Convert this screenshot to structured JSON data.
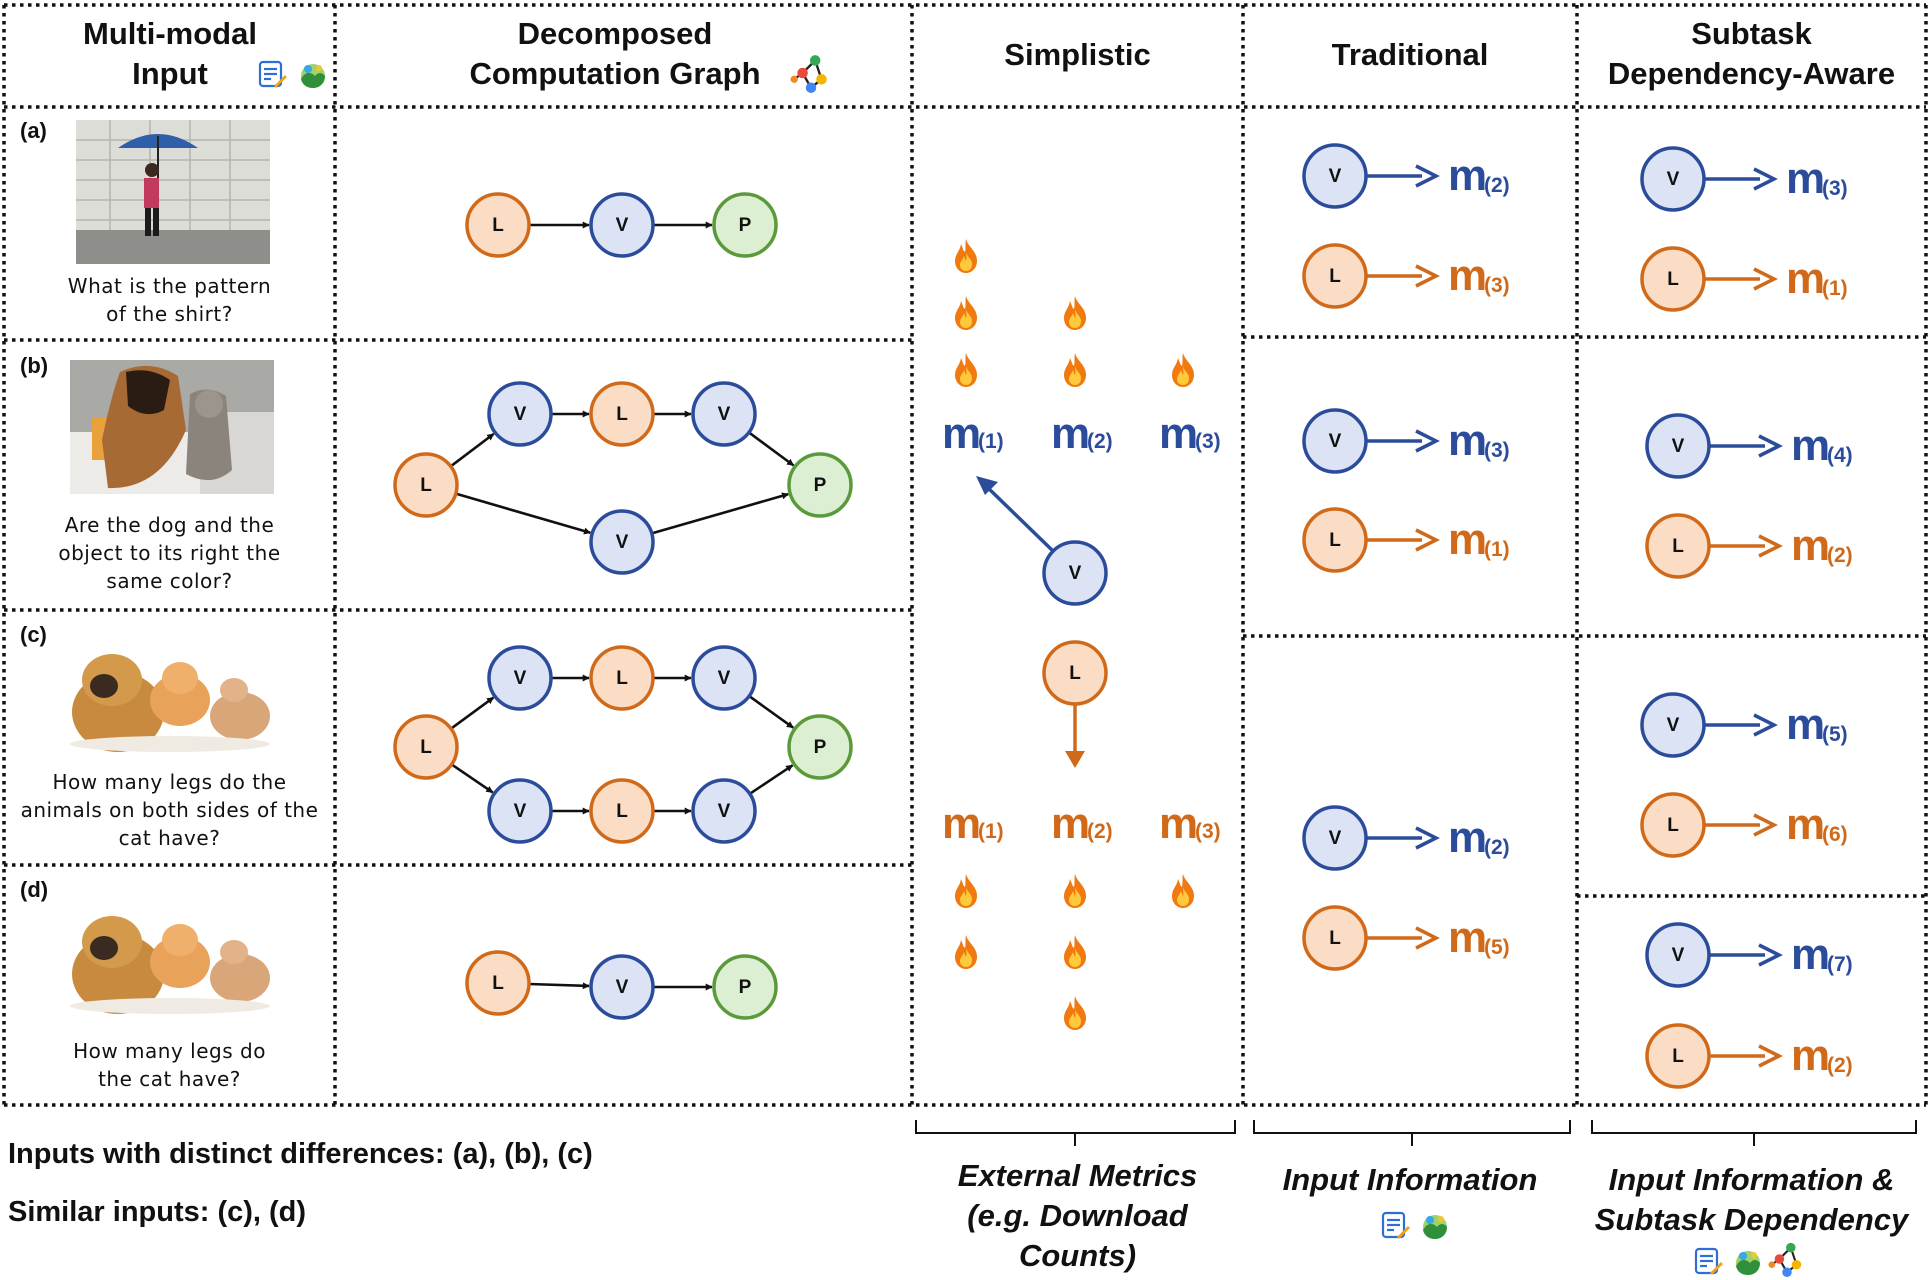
{
  "headers": {
    "col1": "Multi-modal\nInput",
    "col2": "Decomposed\nComputation Graph",
    "col3": "Simplistic",
    "col4": "Traditional",
    "col5": "Subtask\nDependency-Aware"
  },
  "rows": [
    {
      "tag": "(a)",
      "question": "What is the pattern\nof the shirt?"
    },
    {
      "tag": "(b)",
      "question": "Are the dog and the\nobject to its right the\nsame color?"
    },
    {
      "tag": "(c)",
      "question": "How many legs do the\nanimals on both sides of the\ncat have?"
    },
    {
      "tag": "(d)",
      "question": "How many legs do\nthe cat have?"
    }
  ],
  "node_labels": {
    "L": "L",
    "V": "V",
    "P": "P"
  },
  "metric_letter": "m",
  "simplistic": {
    "v_metrics": [
      "(1)",
      "(2)",
      "(3)"
    ],
    "v_flames": [
      3,
      2,
      1
    ],
    "l_metrics": [
      "(1)",
      "(2)",
      "(3)"
    ],
    "l_flames": [
      2,
      3,
      1
    ]
  },
  "traditional": [
    {
      "v": "(2)",
      "l": "(3)"
    },
    {
      "v": "(3)",
      "l": "(1)"
    },
    {
      "v": "(2)",
      "l": "(5)"
    }
  ],
  "dependency_aware": [
    {
      "v": "(3)",
      "l": "(1)"
    },
    {
      "v": "(4)",
      "l": "(2)"
    },
    {
      "v": "(5)",
      "l": "(6)"
    },
    {
      "v": "(7)",
      "l": "(2)"
    }
  ],
  "notes": {
    "distinct": "Inputs with distinct differences: (a), (b), (c)",
    "similar": "Similar inputs: (c), (d)"
  },
  "brackets": {
    "simplistic": "External Metrics\n(e.g. Download\nCounts)",
    "traditional": "Input Information",
    "dependency": "Input Information &\nSubtask Dependency"
  },
  "colors": {
    "blue": "#2B4B9B",
    "orange": "#D06A1A",
    "v_fill": "#DCE3F4",
    "l_fill": "#FBDDC6",
    "p_fill": "#DCEFD3",
    "p_stroke": "#5A9A3A"
  },
  "icons": [
    "text-icon",
    "image-icon",
    "graph-icon",
    "flame-icon"
  ]
}
